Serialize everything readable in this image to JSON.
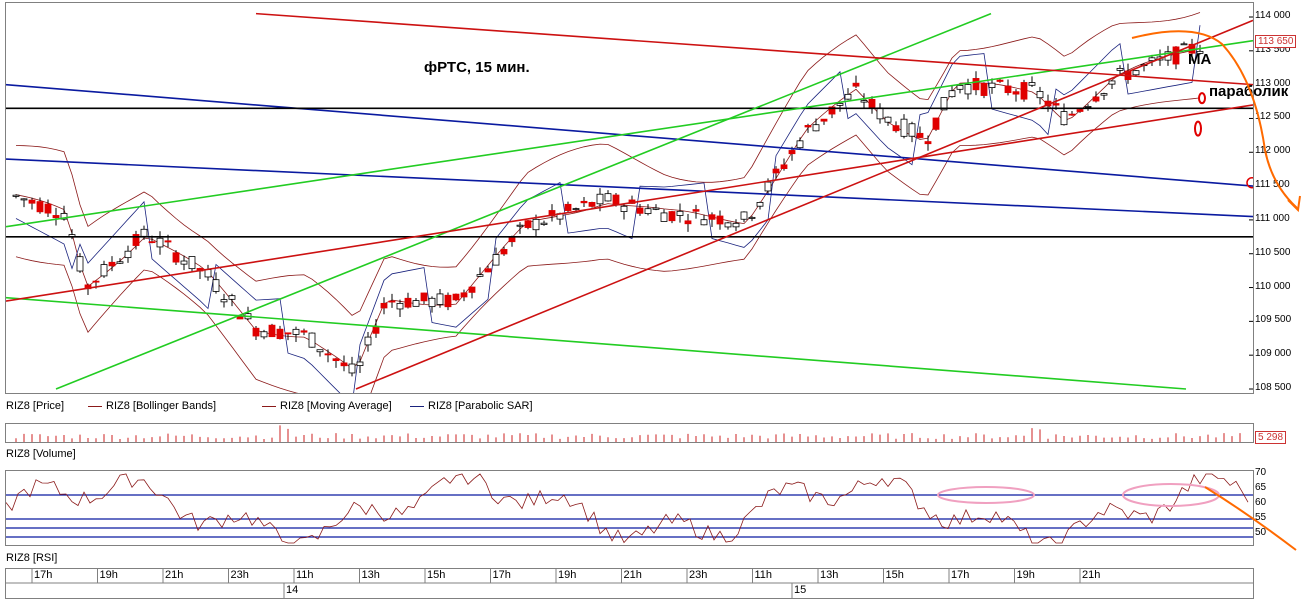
{
  "chart_data": [
    {
      "type": "candlestick",
      "title": "фРТС, 15 мин.",
      "y_ticks": [
        "114 000",
        "113 500",
        "113 000",
        "112 500",
        "112 000",
        "111 500",
        "111 000",
        "110 500",
        "110 000",
        "109 500",
        "109 000",
        "108 500"
      ],
      "ylim": [
        108500,
        114000
      ],
      "last_price": "113 650",
      "annotations": [
        "MA",
        "параболик"
      ],
      "legend": [
        {
          "name": "RIZ8 [Price]",
          "color": "#000000"
        },
        {
          "name": "RIZ8 [Bollinger Bands]",
          "color": "#8b1a1a"
        },
        {
          "name": "RIZ8 [Moving Average]",
          "color": "#8b1a1a"
        },
        {
          "name": "RIZ8 [Parabolic SAR]",
          "color": "#1a237e"
        }
      ]
    },
    {
      "type": "bar",
      "name": "RIZ8 [Volume]",
      "last_value": "5 298"
    },
    {
      "type": "line",
      "name": "RIZ8 [RSI]",
      "y_ticks": [
        "70",
        "65",
        "60",
        "55",
        "50"
      ],
      "ylim": [
        47,
        70
      ]
    }
  ],
  "time_axis": {
    "hours": [
      "17h",
      "19h",
      "21h",
      "23h",
      "11h",
      "13h",
      "15h",
      "17h",
      "19h",
      "21h",
      "23h",
      "11h",
      "13h",
      "15h",
      "17h",
      "19h",
      "21h"
    ],
    "days": [
      "14",
      "15"
    ]
  },
  "colors": {
    "up": "#ffffff",
    "down": "#e00000",
    "trend_green": "#22cc22",
    "trend_blue": "#0a1aa0",
    "trend_red": "#cc1111",
    "annotation": "#ff6a00"
  }
}
